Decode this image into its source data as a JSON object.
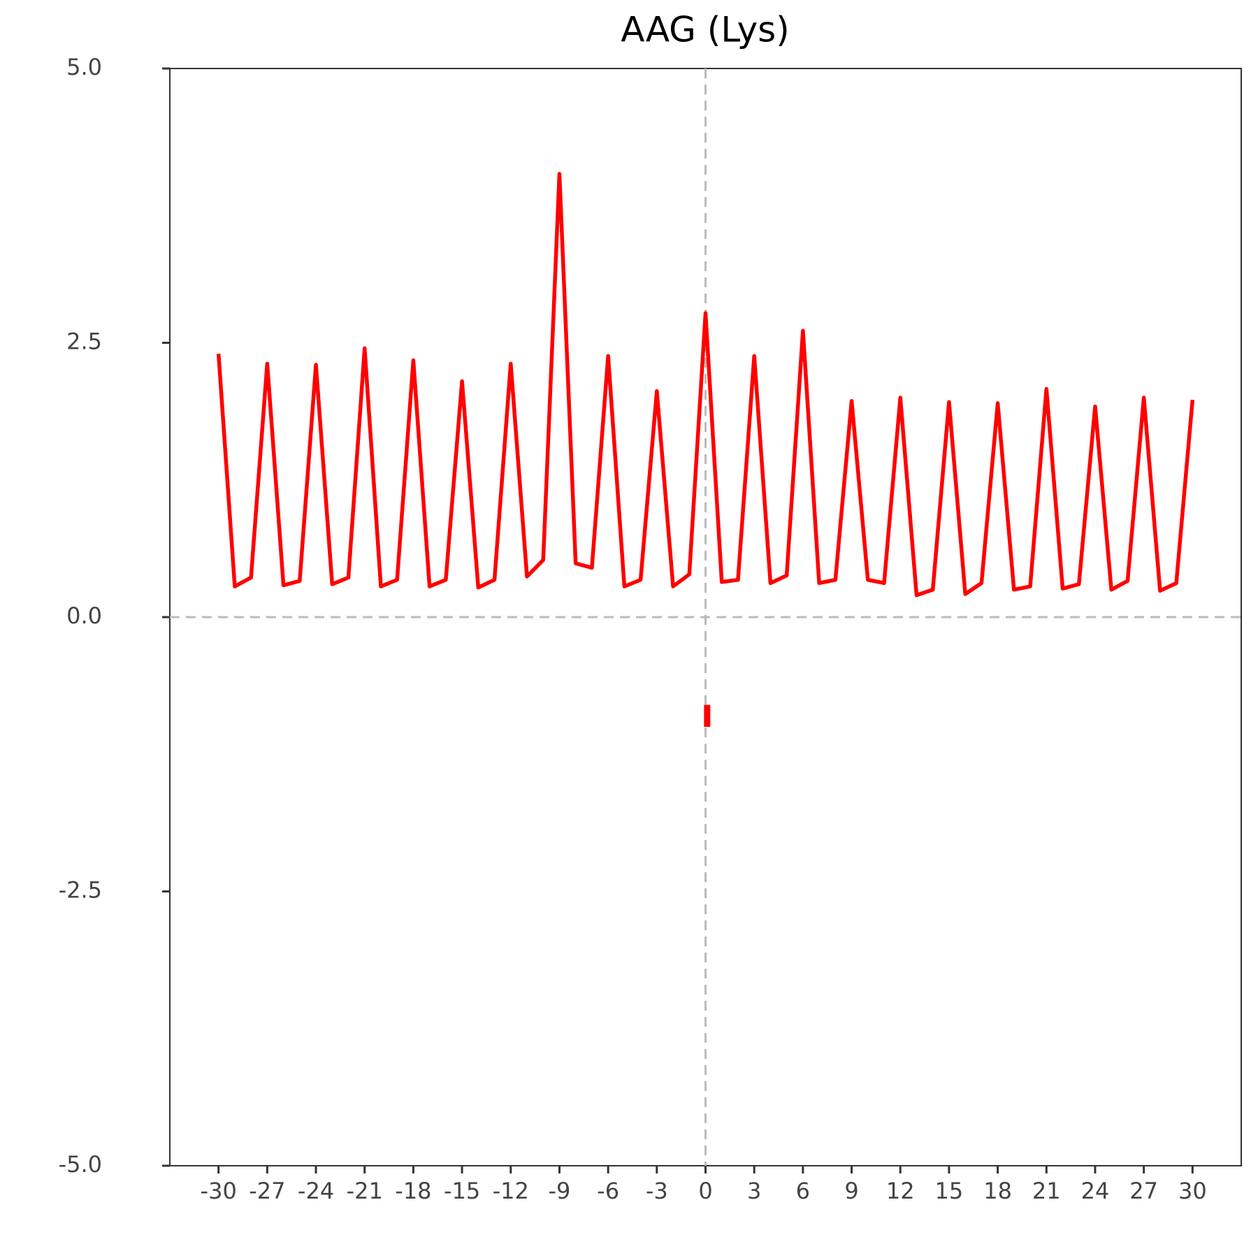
{
  "chart_data": {
    "type": "line",
    "title": "AAG (Lys)",
    "x": [
      -30,
      -29,
      -28,
      -27,
      -26,
      -25,
      -24,
      -23,
      -22,
      -21,
      -20,
      -19,
      -18,
      -17,
      -16,
      -15,
      -14,
      -13,
      -12,
      -11,
      -10,
      -9,
      -8,
      -7,
      -6,
      -5,
      -4,
      -3,
      -2,
      -1,
      0,
      1,
      2,
      3,
      4,
      5,
      6,
      7,
      8,
      9,
      10,
      11,
      12,
      13,
      14,
      15,
      16,
      17,
      18,
      19,
      20,
      21,
      22,
      23,
      24,
      25,
      26,
      27,
      28,
      29,
      30
    ],
    "series": [
      {
        "color": "#ff0000",
        "values": [
          2.4,
          0.28,
          0.36,
          2.31,
          0.29,
          0.33,
          2.3,
          0.3,
          0.36,
          2.45,
          0.28,
          0.34,
          2.34,
          0.28,
          0.34,
          2.15,
          0.27,
          0.34,
          2.31,
          0.37,
          0.52,
          4.04,
          0.49,
          0.45,
          2.38,
          0.28,
          0.34,
          2.06,
          0.28,
          0.39,
          2.77,
          0.32,
          0.34,
          2.38,
          0.31,
          0.38,
          2.61,
          0.31,
          0.34,
          1.97,
          0.34,
          0.31,
          2.0,
          0.2,
          0.25,
          1.96,
          0.21,
          0.31,
          1.95,
          0.25,
          0.28,
          2.08,
          0.26,
          0.3,
          1.92,
          0.25,
          0.33,
          2.0,
          0.24,
          0.31,
          1.98
        ]
      },
      {
        "color": "#ff0000",
        "x": [
          0.1,
          0.1
        ],
        "values": [
          -0.8,
          -1.0
        ]
      }
    ],
    "xlim": [
      -33,
      33
    ],
    "ylim": [
      -5,
      5
    ],
    "xticks": [
      -30,
      -27,
      -24,
      -21,
      -18,
      -15,
      -12,
      -9,
      -6,
      -3,
      0,
      3,
      6,
      9,
      12,
      15,
      18,
      21,
      24,
      27,
      30
    ],
    "yticks": [
      {
        "value": -5,
        "label": "-5.0"
      },
      {
        "value": -2.5,
        "label": "-2.5"
      },
      {
        "value": 0,
        "label": "0.0"
      },
      {
        "value": 2.5,
        "label": "2.5"
      },
      {
        "value": 5,
        "label": "5.0"
      }
    ],
    "hlines": [
      0
    ],
    "vlines": [
      0
    ],
    "refline_color": "#bbbbbb"
  }
}
